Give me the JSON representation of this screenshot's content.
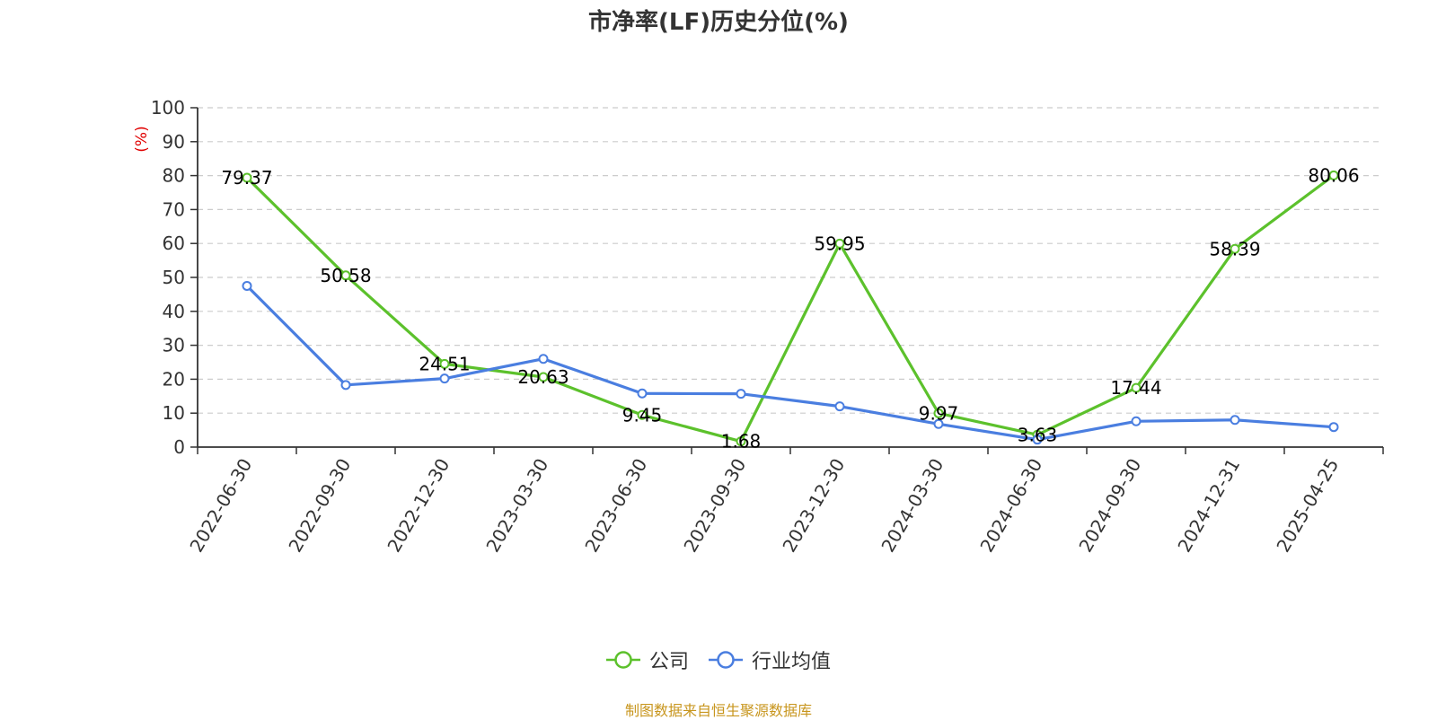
{
  "title": "市净率(LF)历史分位(%)",
  "source": "制图数据来自恒生聚源数据库",
  "colors": {
    "company": "#5cc12c",
    "industry": "#4a7ee0",
    "unit": "#e00000",
    "source": "#c8961e",
    "grid": "#cccccc",
    "axis": "#333333"
  },
  "chart_data": {
    "type": "line",
    "title": "市净率(LF)历史分位(%)",
    "ylabel": "(%)",
    "xlabel": "",
    "ylim": [
      0,
      100
    ],
    "yticks": [
      0,
      10,
      20,
      30,
      40,
      50,
      60,
      70,
      80,
      90,
      100
    ],
    "grid": true,
    "legend_position": "bottom",
    "categories": [
      "2022-06-30",
      "2022-09-30",
      "2022-12-30",
      "2023-03-30",
      "2023-06-30",
      "2023-09-30",
      "2023-12-30",
      "2024-03-30",
      "2024-06-30",
      "2024-09-30",
      "2024-12-31",
      "2025-04-25"
    ],
    "series": [
      {
        "name": "公司",
        "values": [
          79.37,
          50.58,
          24.51,
          20.63,
          9.45,
          1.68,
          59.95,
          9.97,
          3.63,
          17.44,
          58.39,
          80.06
        ],
        "labels": [
          "79.37",
          "50.58",
          "24.51",
          "20.63",
          "9.45",
          "1.68",
          "59.95",
          "9.97",
          "3.63",
          "17.44",
          "58.39",
          "80.06"
        ]
      },
      {
        "name": "行业均值",
        "values": [
          47.5,
          18.3,
          20.2,
          26.0,
          15.8,
          15.7,
          12.0,
          6.8,
          2.2,
          7.6,
          8.0,
          5.9
        ]
      }
    ]
  }
}
